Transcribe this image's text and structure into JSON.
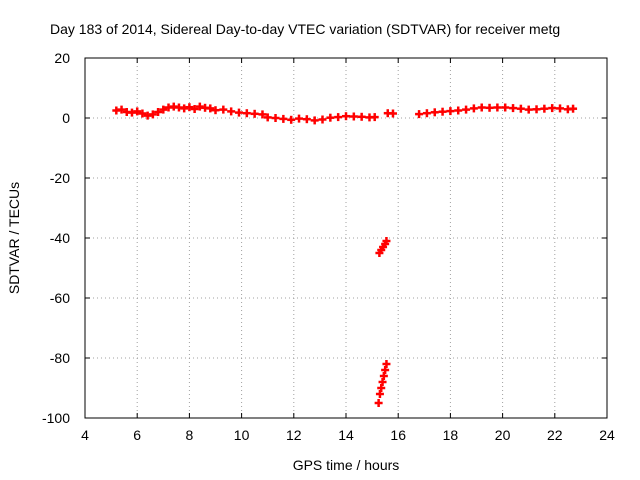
{
  "chart_data": {
    "type": "scatter",
    "title": "Day 183 of 2014, Sidereal Day-to-day VTEC variation (SDTVAR) for receiver metg",
    "xlabel": "GPS time / hours",
    "ylabel": "SDTVAR / TECUs",
    "xlim": [
      4,
      24
    ],
    "ylim": [
      -100,
      20
    ],
    "xticks": [
      4,
      6,
      8,
      10,
      12,
      14,
      16,
      18,
      20,
      22,
      24
    ],
    "yticks": [
      -100,
      -80,
      -60,
      -40,
      -20,
      0,
      20
    ],
    "grid": true,
    "marker": "plus",
    "color": "#ff0000",
    "series": [
      {
        "name": "SDTVAR",
        "x": [
          5.2,
          5.4,
          5.6,
          5.8,
          6.0,
          6.2,
          6.4,
          6.6,
          6.8,
          7.0,
          7.2,
          7.4,
          7.6,
          7.8,
          8.0,
          8.2,
          8.4,
          8.6,
          8.8,
          9.0,
          9.3,
          9.6,
          9.9,
          10.2,
          10.5,
          10.8,
          11.0,
          11.3,
          11.6,
          11.9,
          12.2,
          12.5,
          12.8,
          13.1,
          13.4,
          13.7,
          14.0,
          14.3,
          14.6,
          14.9,
          15.1,
          15.6,
          15.8,
          16.8,
          17.1,
          17.4,
          17.7,
          18.0,
          18.3,
          18.6,
          18.9,
          19.2,
          19.5,
          19.8,
          20.1,
          20.4,
          20.7,
          21.0,
          21.3,
          21.6,
          21.9,
          22.2,
          22.5,
          22.7,
          15.28,
          15.35,
          15.42,
          15.5,
          15.55,
          15.25,
          15.3,
          15.35,
          15.4,
          15.45,
          15.5,
          15.55
        ],
        "y": [
          2.5,
          2.8,
          2.0,
          1.8,
          2.2,
          1.5,
          0.8,
          1.2,
          2.0,
          2.8,
          3.5,
          3.8,
          3.5,
          3.2,
          3.6,
          3.0,
          3.8,
          3.4,
          3.2,
          2.6,
          2.8,
          2.2,
          1.8,
          1.6,
          1.4,
          1.2,
          0.2,
          0.0,
          -0.3,
          -0.6,
          -0.2,
          -0.4,
          -0.8,
          -0.5,
          0.1,
          0.3,
          0.6,
          0.5,
          0.4,
          0.2,
          0.3,
          1.6,
          1.5,
          1.3,
          1.6,
          1.9,
          2.1,
          2.3,
          2.5,
          2.8,
          3.2,
          3.5,
          3.4,
          3.5,
          3.5,
          3.3,
          3.1,
          2.8,
          2.9,
          3.1,
          3.3,
          3.2,
          2.9,
          3.1,
          -45,
          -44,
          -43,
          -42,
          -41,
          -95,
          -92,
          -90,
          -88,
          -86,
          -84,
          -82
        ]
      }
    ]
  }
}
